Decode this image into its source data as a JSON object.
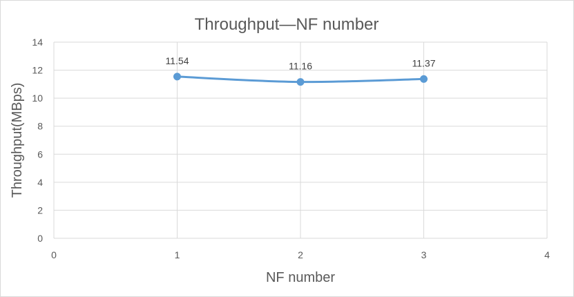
{
  "chart_data": {
    "type": "scatter",
    "title": "Throughput—NF number",
    "xlabel": "NF number",
    "ylabel": "Throughput(MBps)",
    "xlim": [
      0,
      4
    ],
    "ylim": [
      0,
      14
    ],
    "x_ticks": [
      0,
      1,
      2,
      3,
      4
    ],
    "y_ticks": [
      0,
      2,
      4,
      6,
      8,
      10,
      12,
      14
    ],
    "grid": true,
    "legend": "none",
    "series": [
      {
        "x": [
          1,
          2,
          3
        ],
        "y": [
          11.54,
          11.16,
          11.37
        ],
        "labels": [
          "11.54",
          "11.16",
          "11.37"
        ],
        "color": "#5b9bd5"
      }
    ]
  }
}
